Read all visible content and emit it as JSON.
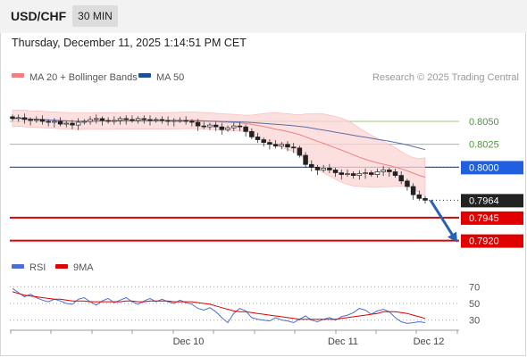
{
  "header": {
    "symbol": "USD/CHF",
    "timeframe": "30 MIN",
    "timestamp": "Thursday, December 11, 2025 1:14:51 PM CET"
  },
  "legend": {
    "ma20_label": "MA 20 + Bollinger Bands",
    "ma50_label": "MA 50",
    "ma20_color": "#f08080",
    "ma50_color": "#1f4e9b",
    "copyright": "Research © 2025 Trading Central"
  },
  "rsi_legend": {
    "rsi_label": "RSI",
    "ma9_label": "9MA",
    "rsi_color": "#4a6fd0",
    "ma9_color": "#e00000"
  },
  "chart_data": [
    {
      "type": "candlestick",
      "title": "USD/CHF 30 MIN",
      "x_ticks": [
        "Dec 10",
        "Dec 11",
        "Dec 12"
      ],
      "ylim": [
        0.7905,
        0.8085
      ],
      "closes": [
        0.8053,
        0.8054,
        0.8052,
        0.8051,
        0.8052,
        0.805,
        0.8049,
        0.805,
        0.8047,
        0.8048,
        0.8046,
        0.8049,
        0.805,
        0.8052,
        0.8053,
        0.8051,
        0.805,
        0.8051,
        0.8053,
        0.8052,
        0.8051,
        0.8053,
        0.8052,
        0.8051,
        0.8052,
        0.8051,
        0.805,
        0.8051,
        0.8051,
        0.805,
        0.8049,
        0.8045,
        0.8044,
        0.8046,
        0.8044,
        0.8041,
        0.8043,
        0.8045,
        0.8044,
        0.8039,
        0.8033,
        0.803,
        0.8027,
        0.8025,
        0.8023,
        0.8025,
        0.8022,
        0.8021,
        0.8013,
        0.8003,
        0.8,
        0.7997,
        0.7999,
        0.7997,
        0.7994,
        0.7992,
        0.7993,
        0.7991,
        0.7993,
        0.7994,
        0.7992,
        0.7995,
        0.7997,
        0.7995,
        0.7991,
        0.7985,
        0.7979,
        0.797,
        0.7966,
        0.7964
      ],
      "levels": {
        "resistance": [
          0.805,
          0.8025,
          0.8
        ],
        "current": 0.7964,
        "support": [
          0.7945,
          0.792
        ]
      },
      "level_labels": [
        "0.8050",
        "0.8025",
        "0.8000",
        "0.7964",
        "0.7945",
        "0.7920"
      ],
      "level_colors": {
        "resistance_green": "#98c878",
        "pivot_blue": "#1f5fe0",
        "support_red": "#e00000",
        "current_dark": "#222222",
        "arrow": "#2a62b0"
      },
      "projection": {
        "from": 0.7964,
        "to": 0.792
      }
    },
    {
      "type": "line",
      "title": "RSI",
      "yticks": [
        70,
        50,
        30
      ],
      "ylim": [
        20,
        80
      ],
      "series": [
        {
          "name": "RSI",
          "values": [
            68,
            63,
            58,
            61,
            57,
            54,
            52,
            55,
            53,
            50,
            49,
            55,
            57,
            52,
            48,
            53,
            56,
            51,
            54,
            57,
            52,
            49,
            53,
            56,
            52,
            55,
            52,
            50,
            54,
            51,
            49,
            44,
            42,
            45,
            40,
            33,
            27,
            38,
            44,
            41,
            33,
            31,
            30,
            29,
            33,
            30,
            29,
            27,
            31,
            35,
            30,
            28,
            31,
            33,
            30,
            34,
            36,
            39,
            44,
            42,
            37,
            41,
            43,
            40,
            33,
            28,
            26,
            27,
            28,
            27
          ]
        },
        {
          "name": "9MA",
          "values": [
            64,
            62,
            60,
            59,
            58,
            57,
            56,
            55,
            55,
            54,
            53,
            53,
            53,
            52,
            52,
            52,
            52,
            52,
            52,
            53,
            53,
            52,
            52,
            53,
            53,
            53,
            53,
            52,
            52,
            52,
            52,
            51,
            50,
            49,
            47,
            45,
            43,
            41,
            40,
            40,
            39,
            38,
            37,
            36,
            35,
            34,
            33,
            32,
            31,
            31,
            31,
            31,
            31,
            31,
            31,
            32,
            33,
            34,
            35,
            36,
            37,
            38,
            40,
            40,
            40,
            39,
            38,
            36,
            34,
            32
          ]
        }
      ]
    }
  ]
}
